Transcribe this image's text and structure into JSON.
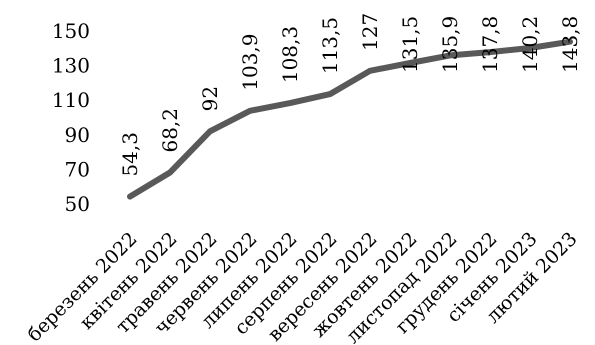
{
  "chart_data": {
    "type": "line",
    "categories": [
      "березень 2022",
      "квітень 2022",
      "травень 2022",
      "червень 2022",
      "липень 2022",
      "серпень 2022",
      "вересень 2022",
      "жовтень 2022",
      "листопад 2022",
      "грудень 2022",
      "січень 2023",
      "лютий 2023"
    ],
    "series": [
      {
        "values": [
          54.3,
          68.2,
          92,
          103.9,
          108.3,
          113.5,
          127,
          131.5,
          135.9,
          137.8,
          140.2,
          143.8
        ],
        "labels": [
          "54,3",
          "68,2",
          "92",
          "103,9",
          "108,3",
          "113,5",
          "127",
          "131,5",
          "135,9",
          "137,8",
          "140,2",
          "143,8"
        ],
        "color": "#595959"
      }
    ],
    "ylim": [
      50,
      150
    ],
    "yticks": [
      50,
      70,
      90,
      110,
      130,
      150
    ],
    "grid": false,
    "legend": "none",
    "title": "",
    "xlabel": "",
    "ylabel": ""
  }
}
